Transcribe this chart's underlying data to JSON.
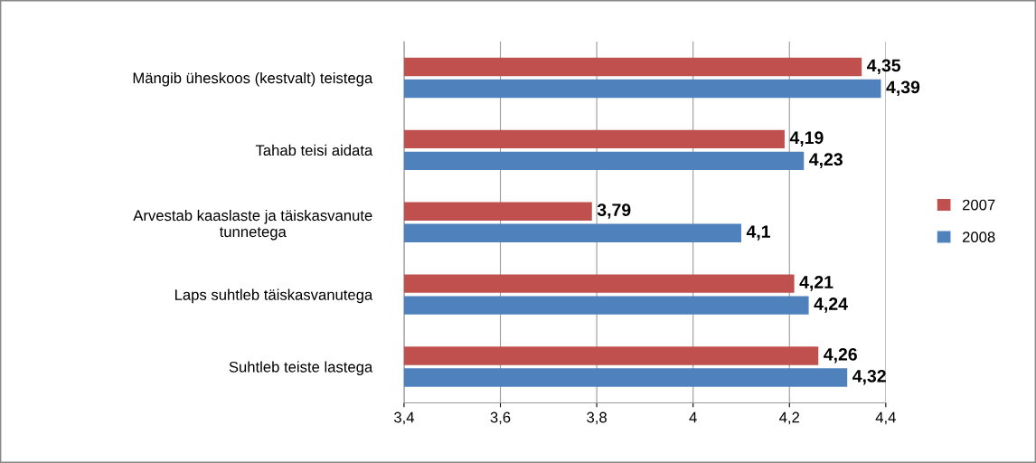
{
  "chart_data": {
    "type": "bar",
    "orientation": "horizontal",
    "categories": [
      "Mängib üheskoos (kestvalt) teistega",
      "Tahab teisi aidata",
      "Arvestab kaaslaste ja täiskasvanute\ntunnetega",
      "Laps suhtleb täiskasvanutega",
      "Suhtleb teiste lastega"
    ],
    "series": [
      {
        "name": "2007",
        "color": "#c0504d",
        "values": [
          4.35,
          4.19,
          3.79,
          4.21,
          4.26
        ],
        "value_labels": [
          "4,35",
          "4,19",
          "3,79",
          "4,21",
          "4,26"
        ]
      },
      {
        "name": "2008",
        "color": "#4f81bd",
        "values": [
          4.39,
          4.23,
          4.1,
          4.24,
          4.32
        ],
        "value_labels": [
          "4,39",
          "4,23",
          "4,1",
          "4,24",
          "4,32"
        ]
      }
    ],
    "xlim": [
      3.4,
      4.4
    ],
    "xticks": [
      {
        "value": 3.4,
        "label": "3,4"
      },
      {
        "value": 3.6,
        "label": "3,6"
      },
      {
        "value": 3.8,
        "label": "3,8"
      },
      {
        "value": 4,
        "label": "4"
      },
      {
        "value": 4.2,
        "label": "4,2"
      },
      {
        "value": 4.4,
        "label": "4,4"
      }
    ],
    "grid": "x",
    "legend": "right"
  }
}
